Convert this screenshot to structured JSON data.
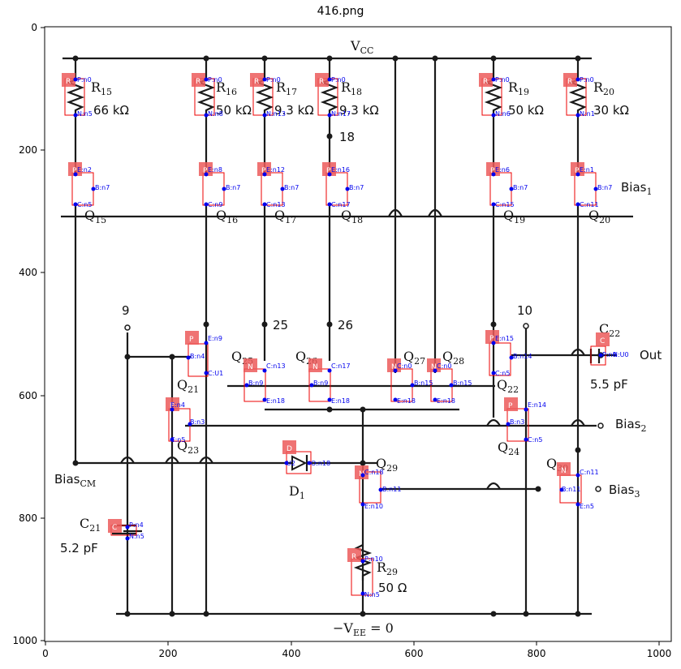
{
  "figure": {
    "title": "416.png",
    "x_ticks": [
      "0",
      "200",
      "400",
      "600",
      "800",
      "1000"
    ],
    "y_ticks": [
      "0",
      "200",
      "400",
      "600",
      "800",
      "1000"
    ]
  },
  "rails": {
    "vcc": "V",
    "vcc_sub": "CC",
    "vee": "−V",
    "vee_sub": "EE",
    "vee_tail": " = 0"
  },
  "ports": {
    "bias1": "Bias",
    "bias1_sub": "1",
    "bias2": "Bias",
    "bias2_sub": "2",
    "bias3": "Bias",
    "bias3_sub": "3",
    "biascm": "Bias",
    "biascm_sub": "CM",
    "out": "Out"
  },
  "nodes": [
    "18",
    "9",
    "25",
    "26",
    "10"
  ],
  "components": [
    {
      "id": "R15",
      "name": "R",
      "sub": "15",
      "value": "66 kΩ",
      "badge": "R"
    },
    {
      "id": "R16",
      "name": "R",
      "sub": "16",
      "value": "50 kΩ",
      "badge": "R"
    },
    {
      "id": "R17",
      "name": "R",
      "sub": "17",
      "value": "9.3 kΩ",
      "badge": "R"
    },
    {
      "id": "R18",
      "name": "R",
      "sub": "18",
      "value": "9.3 kΩ",
      "badge": "R"
    },
    {
      "id": "R19",
      "name": "R",
      "sub": "19",
      "value": "50 kΩ",
      "badge": "R"
    },
    {
      "id": "R20",
      "name": "R",
      "sub": "20",
      "value": "30 kΩ",
      "badge": "R"
    },
    {
      "id": "R29",
      "name": "R",
      "sub": "29",
      "value": "50 Ω",
      "badge": "R"
    },
    {
      "id": "Q15",
      "name": "Q",
      "sub": "15",
      "badge": "P"
    },
    {
      "id": "Q16",
      "name": "Q",
      "sub": "16",
      "badge": "P"
    },
    {
      "id": "Q17",
      "name": "Q",
      "sub": "17",
      "badge": "P"
    },
    {
      "id": "Q18",
      "name": "Q",
      "sub": "18",
      "badge": "P"
    },
    {
      "id": "Q19",
      "name": "Q",
      "sub": "19",
      "badge": "P"
    },
    {
      "id": "Q20",
      "name": "Q",
      "sub": "20",
      "badge": "P"
    },
    {
      "id": "Q21",
      "name": "Q",
      "sub": "21",
      "badge": "P"
    },
    {
      "id": "Q22",
      "name": "Q",
      "sub": "22",
      "badge": "P"
    },
    {
      "id": "Q23",
      "name": "Q",
      "sub": "23",
      "badge": "P"
    },
    {
      "id": "Q24",
      "name": "Q",
      "sub": "24",
      "badge": "P"
    },
    {
      "id": "Q25",
      "name": "Q",
      "sub": "25",
      "badge": "N"
    },
    {
      "id": "Q26",
      "name": "Q",
      "sub": "26",
      "badge": "N"
    },
    {
      "id": "Q27",
      "name": "Q",
      "sub": "27",
      "badge": "N"
    },
    {
      "id": "Q28",
      "name": "Q",
      "sub": "28",
      "badge": "N"
    },
    {
      "id": "Q29",
      "name": "Q",
      "sub": "29",
      "badge": "N"
    },
    {
      "id": "Q30",
      "name": "Q",
      "sub": "30",
      "badge": "N"
    },
    {
      "id": "C21",
      "name": "C",
      "sub": "21",
      "value": "5.2 pF",
      "badge": "C"
    },
    {
      "id": "C22",
      "name": "C",
      "sub": "22",
      "value": "5.5 pF",
      "badge": "C"
    },
    {
      "id": "D1",
      "name": "D",
      "sub": "1",
      "badge": "D"
    }
  ],
  "annotations": [
    "P:n0",
    "N:n5",
    "P:n0",
    "N:n8",
    "P:n0",
    "N:n13",
    "P:n0",
    "N:n17",
    "P:n0",
    "N:n6",
    "P:n0",
    "N:n1",
    "E:n2",
    "B:n7",
    "C:n5",
    "E:n8",
    "B:n7",
    "C:n9",
    "E:n12",
    "B:n7",
    "C:n13",
    "E:n16",
    "B:n7",
    "C:n17",
    "E:n6",
    "B:n7",
    "C:n15",
    "E:n1",
    "B:n7",
    "C:n11",
    "E:n9",
    "B:n4",
    "C:U1",
    "C:n13",
    "B:n9",
    "E:n18",
    "C:n17",
    "B:n9",
    "E:n18",
    "C:n0",
    "B:n15",
    "E:n18",
    "C:n0",
    "B:n15",
    "E:n18",
    "E:n15",
    "B:n14",
    "C:n5",
    "E:n4",
    "B:n3",
    "C:n5",
    "E:n14",
    "B:n3",
    "C:n5",
    "U2",
    "O:n18",
    "C:n18",
    "B:n11",
    "E:n10",
    "C:n11",
    "B:n11",
    "E:n5",
    "P:n10",
    "N:n5",
    "P:n4",
    "N:n5",
    "P:n0",
    "N:U0"
  ]
}
